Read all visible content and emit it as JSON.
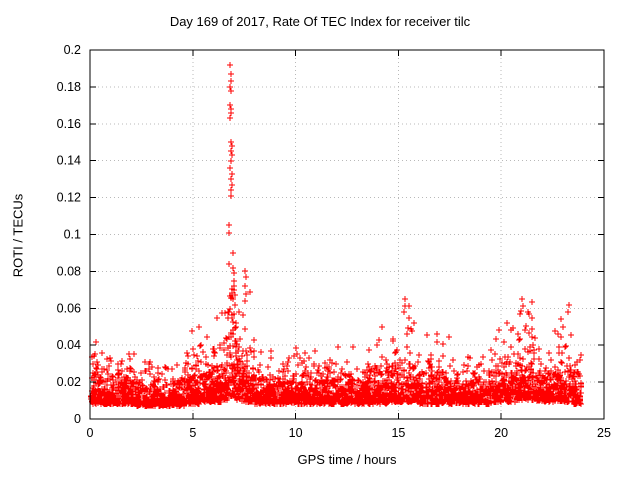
{
  "chart_data": {
    "type": "scatter",
    "title": "Day 169 of 2017, Rate Of TEC Index for receiver tilc",
    "xlabel": "GPS time / hours",
    "ylabel": "ROTI / TECUs",
    "xlim": [
      0,
      25
    ],
    "ylim": [
      0,
      0.2
    ],
    "xticks": [
      {
        "v": 0,
        "label": "0"
      },
      {
        "v": 5,
        "label": "5"
      },
      {
        "v": 10,
        "label": "10"
      },
      {
        "v": 15,
        "label": "15"
      },
      {
        "v": 20,
        "label": "20"
      },
      {
        "v": 25,
        "label": "25"
      }
    ],
    "yticks": [
      {
        "v": 0.0,
        "label": "0"
      },
      {
        "v": 0.02,
        "label": "0.02"
      },
      {
        "v": 0.04,
        "label": "0.04"
      },
      {
        "v": 0.06,
        "label": "0.06"
      },
      {
        "v": 0.08,
        "label": "0.08"
      },
      {
        "v": 0.1,
        "label": "0.1"
      },
      {
        "v": 0.12,
        "label": "0.12"
      },
      {
        "v": 0.14,
        "label": "0.14"
      },
      {
        "v": 0.16,
        "label": "0.16"
      },
      {
        "v": 0.18,
        "label": "0.18"
      },
      {
        "v": 0.2,
        "label": "0.2"
      }
    ],
    "grid": true,
    "legend": "none",
    "marker": "plus",
    "point_color": "#ff0000",
    "axis_color": "#000000",
    "grid_color": "#b9b9b9",
    "background": "#ffffff",
    "seed": 169,
    "noise_segments": [
      [
        0.05,
        0.6,
        100,
        0.008,
        0.009,
        0.042
      ],
      [
        0.6,
        2.2,
        260,
        0.008,
        0.007,
        0.038
      ],
      [
        2.2,
        4.6,
        360,
        0.007,
        0.006,
        0.032
      ],
      [
        4.6,
        5.4,
        130,
        0.008,
        0.009,
        0.05
      ],
      [
        5.4,
        6.4,
        160,
        0.009,
        0.01,
        0.056
      ],
      [
        6.4,
        6.75,
        60,
        0.01,
        0.013,
        0.065
      ],
      [
        6.75,
        7.1,
        70,
        0.012,
        0.022,
        0.095
      ],
      [
        7.1,
        7.5,
        70,
        0.01,
        0.013,
        0.065
      ],
      [
        7.5,
        8.0,
        90,
        0.009,
        0.012,
        0.078
      ],
      [
        8.0,
        10.0,
        300,
        0.008,
        0.007,
        0.04
      ],
      [
        10.0,
        13.5,
        520,
        0.008,
        0.007,
        0.042
      ],
      [
        13.5,
        14.5,
        160,
        0.008,
        0.008,
        0.05
      ],
      [
        14.5,
        16.0,
        230,
        0.009,
        0.009,
        0.062
      ],
      [
        16.0,
        17.5,
        220,
        0.008,
        0.008,
        0.046
      ],
      [
        17.5,
        19.5,
        290,
        0.008,
        0.007,
        0.04
      ],
      [
        19.5,
        20.7,
        180,
        0.009,
        0.009,
        0.055
      ],
      [
        20.7,
        21.6,
        150,
        0.01,
        0.011,
        0.064
      ],
      [
        21.6,
        22.6,
        150,
        0.009,
        0.009,
        0.05
      ],
      [
        22.6,
        23.5,
        140,
        0.009,
        0.01,
        0.062
      ],
      [
        23.5,
        23.9,
        70,
        0.008,
        0.008,
        0.04
      ]
    ],
    "peak_points": [
      [
        6.82,
        0.192
      ],
      [
        6.84,
        0.187
      ],
      [
        6.85,
        0.183
      ],
      [
        6.83,
        0.18
      ],
      [
        6.86,
        0.178
      ],
      [
        6.8,
        0.17
      ],
      [
        6.87,
        0.168
      ],
      [
        6.84,
        0.166
      ],
      [
        6.82,
        0.163
      ],
      [
        6.88,
        0.15
      ],
      [
        6.9,
        0.148
      ],
      [
        6.85,
        0.145
      ],
      [
        6.91,
        0.143
      ],
      [
        6.86,
        0.14
      ],
      [
        6.83,
        0.136
      ],
      [
        6.89,
        0.133
      ],
      [
        6.87,
        0.13
      ],
      [
        6.92,
        0.127
      ],
      [
        6.84,
        0.124
      ],
      [
        6.88,
        0.121
      ],
      [
        6.74,
        0.105
      ],
      [
        6.76,
        0.101
      ],
      [
        6.95,
        0.09
      ],
      [
        6.97,
        0.082
      ],
      [
        7.0,
        0.079
      ],
      [
        6.99,
        0.075
      ],
      [
        7.02,
        0.072
      ],
      [
        6.98,
        0.07
      ],
      [
        7.03,
        0.067
      ],
      [
        6.96,
        0.065
      ],
      [
        7.05,
        0.062
      ],
      [
        6.7,
        0.058
      ],
      [
        6.72,
        0.055
      ],
      [
        7.08,
        0.052
      ],
      [
        7.1,
        0.05
      ],
      [
        7.55,
        0.08
      ],
      [
        7.58,
        0.077
      ],
      [
        7.52,
        0.072
      ],
      [
        7.6,
        0.068
      ],
      [
        7.56,
        0.064
      ],
      [
        15.3,
        0.065
      ],
      [
        15.32,
        0.061
      ],
      [
        15.25,
        0.058
      ],
      [
        15.5,
        0.055
      ],
      [
        21.0,
        0.065
      ],
      [
        21.05,
        0.061
      ],
      [
        21.3,
        0.058
      ],
      [
        21.5,
        0.055
      ],
      [
        20.9,
        0.057
      ],
      [
        23.3,
        0.062
      ],
      [
        23.25,
        0.058
      ],
      [
        22.9,
        0.054
      ],
      [
        23.0,
        0.05
      ],
      [
        20.3,
        0.052
      ],
      [
        19.9,
        0.048
      ],
      [
        14.2,
        0.05
      ],
      [
        5.3,
        0.05
      ],
      [
        6.2,
        0.055
      ],
      [
        0.3,
        0.042
      ],
      [
        16.9,
        0.046
      ]
    ]
  }
}
